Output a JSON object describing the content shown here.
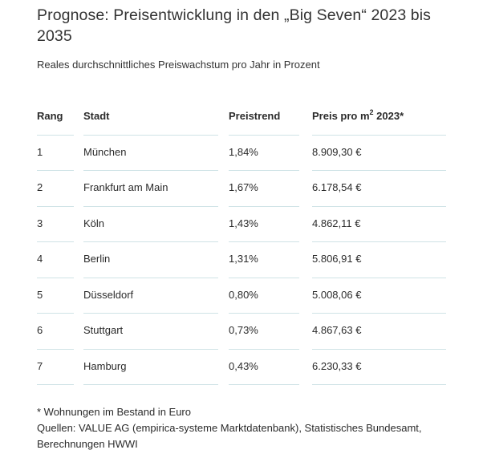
{
  "title": "Prognose: Preisentwicklung in den „Big Seven“ 2023 bis 2035",
  "subtitle": "Reales durchschnittliches Preiswachstum pro Jahr in Prozent",
  "table": {
    "headers": {
      "rank": "Rang",
      "city": "Stadt",
      "trend": "Preistrend",
      "price_prefix": "Preis pro m",
      "price_sup": "2",
      "price_suffix": " 2023*"
    },
    "rows": [
      {
        "rank": "1",
        "city": "München",
        "trend": "1,84%",
        "price": "8.909,30 €"
      },
      {
        "rank": "2",
        "city": "Frankfurt am Main",
        "trend": "1,67%",
        "price": "6.178,54 €"
      },
      {
        "rank": "3",
        "city": "Köln",
        "trend": "1,43%",
        "price": "4.862,11 €"
      },
      {
        "rank": "4",
        "city": "Berlin",
        "trend": "1,31%",
        "price": "5.806,91 €"
      },
      {
        "rank": "5",
        "city": "Düsseldorf",
        "trend": "0,80%",
        "price": "5.008,06 €"
      },
      {
        "rank": "6",
        "city": "Stuttgart",
        "trend": "0,73%",
        "price": "4.867,63 €"
      },
      {
        "rank": "7",
        "city": "Hamburg",
        "trend": "0,43%",
        "price": "6.230,33 €"
      }
    ]
  },
  "notes": {
    "footnote": "* Wohnungen im Bestand in Euro",
    "sources": "Quellen: VALUE AG (empirica-systeme Marktdatenbank), Statistisches Bundesamt, Berechnungen HWWI"
  },
  "colors": {
    "rule": "#cfe3e6",
    "text": "#2b2b2b"
  }
}
